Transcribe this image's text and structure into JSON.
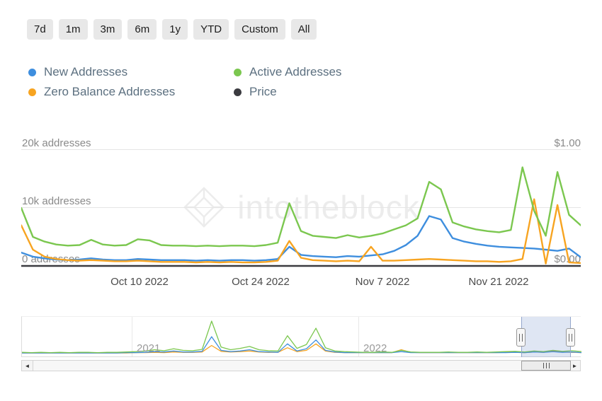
{
  "toolbar": {
    "ranges": [
      "7d",
      "1m",
      "3m",
      "6m",
      "1y",
      "YTD",
      "Custom",
      "All"
    ]
  },
  "legend": {
    "items": [
      {
        "label": "New Addresses",
        "color": "#3e8ede"
      },
      {
        "label": "Active Addresses",
        "color": "#7bc74f"
      },
      {
        "label": "Zero Balance Addresses",
        "color": "#f7a421"
      },
      {
        "label": "Price",
        "color": "#3b3b40"
      }
    ]
  },
  "watermark": {
    "text": "intotheblock"
  },
  "chart_data": {
    "type": "line",
    "title": "",
    "ylabel_left": "addresses",
    "ylabel_right": "price",
    "ylim": [
      0,
      20000
    ],
    "ylim_right": [
      0,
      1
    ],
    "grid": true,
    "y_left_labels": [
      "20k addresses",
      "10k addresses",
      "0 addresses"
    ],
    "y_right_labels": [
      "$1.00",
      "$0.00"
    ],
    "x_labels": [
      "Oct 10 2022",
      "Oct 24 2022",
      "Nov 7 2022",
      "Nov 21 2022"
    ],
    "series": [
      {
        "name": "New Addresses",
        "color": "#3e8ede",
        "axis": "left",
        "values": [
          2300,
          1600,
          1300,
          1100,
          1000,
          1100,
          1300,
          1100,
          1000,
          1000,
          1200,
          1100,
          1000,
          1000,
          1000,
          900,
          1000,
          900,
          1000,
          1000,
          900,
          1000,
          1200,
          3300,
          1900,
          1700,
          1600,
          1500,
          1700,
          1600,
          1800,
          2000,
          2600,
          3600,
          5200,
          8600,
          8000,
          4800,
          4200,
          3800,
          3500,
          3300,
          3200,
          3100,
          3000,
          2800,
          2600,
          3000,
          1500
        ]
      },
      {
        "name": "Zero Balance Addresses",
        "color": "#f7a421",
        "axis": "left",
        "values": [
          7000,
          2800,
          1600,
          1200,
          1000,
          900,
          1000,
          900,
          800,
          800,
          900,
          800,
          700,
          700,
          700,
          600,
          700,
          600,
          700,
          600,
          600,
          700,
          900,
          4300,
          1400,
          1000,
          900,
          800,
          900,
          800,
          3300,
          900,
          900,
          1000,
          1100,
          1200,
          1100,
          1000,
          900,
          800,
          800,
          700,
          800,
          1200,
          11500,
          400,
          10500,
          600,
          500
        ]
      },
      {
        "name": "Active Addresses",
        "color": "#7bc74f",
        "axis": "left",
        "values": [
          10000,
          5000,
          4200,
          3700,
          3500,
          3600,
          4500,
          3700,
          3500,
          3600,
          4600,
          4400,
          3600,
          3500,
          3500,
          3400,
          3500,
          3400,
          3500,
          3500,
          3400,
          3600,
          4000,
          10800,
          6000,
          5200,
          5000,
          4800,
          5300,
          4900,
          5200,
          5600,
          6300,
          7000,
          8200,
          14500,
          13200,
          7500,
          6800,
          6300,
          6000,
          5800,
          6200,
          17000,
          9500,
          5200,
          16200,
          8800,
          7000
        ]
      },
      {
        "name": "Price",
        "color": "#3b3b40",
        "axis": "right",
        "values": [
          0,
          0
        ]
      }
    ]
  },
  "navigator": {
    "year_labels": [
      "2021",
      "2022"
    ],
    "series": [
      {
        "name": "Zero Balance Addresses",
        "color": "#f7a421",
        "values": [
          0.02,
          0.02,
          0.02,
          0.02,
          0.02,
          0.02,
          0.02,
          0.02,
          0.02,
          0.02,
          0.02,
          0.02,
          0.03,
          0.03,
          0.04,
          0.03,
          0.05,
          0.04,
          0.04,
          0.05,
          0.25,
          0.07,
          0.05,
          0.06,
          0.08,
          0.05,
          0.04,
          0.04,
          0.18,
          0.06,
          0.1,
          0.3,
          0.08,
          0.04,
          0.03,
          0.03,
          0.03,
          0.03,
          0.03,
          0.03,
          0.12,
          0.04,
          0.03,
          0.03,
          0.03,
          0.03,
          0.03,
          0.03,
          0.03,
          0.03,
          0.03,
          0.04,
          0.04,
          0.03,
          0.05,
          0.04,
          0.08,
          0.05,
          0.04,
          0.03
        ]
      },
      {
        "name": "New Addresses",
        "color": "#3e8ede",
        "values": [
          0.02,
          0.02,
          0.02,
          0.02,
          0.02,
          0.02,
          0.02,
          0.02,
          0.02,
          0.02,
          0.02,
          0.03,
          0.03,
          0.04,
          0.06,
          0.05,
          0.08,
          0.05,
          0.05,
          0.07,
          0.52,
          0.1,
          0.06,
          0.08,
          0.12,
          0.06,
          0.05,
          0.04,
          0.3,
          0.08,
          0.15,
          0.42,
          0.1,
          0.05,
          0.03,
          0.03,
          0.03,
          0.03,
          0.03,
          0.03,
          0.06,
          0.03,
          0.03,
          0.03,
          0.03,
          0.03,
          0.03,
          0.03,
          0.03,
          0.03,
          0.03,
          0.03,
          0.04,
          0.03,
          0.05,
          0.04,
          0.06,
          0.04,
          0.05,
          0.03
        ]
      },
      {
        "name": "Active Addresses",
        "color": "#7bc74f",
        "values": [
          0.04,
          0.03,
          0.04,
          0.03,
          0.04,
          0.03,
          0.04,
          0.04,
          0.03,
          0.04,
          0.04,
          0.05,
          0.06,
          0.08,
          0.12,
          0.09,
          0.15,
          0.1,
          0.09,
          0.13,
          1.0,
          0.2,
          0.12,
          0.16,
          0.22,
          0.12,
          0.09,
          0.08,
          0.55,
          0.16,
          0.28,
          0.78,
          0.18,
          0.08,
          0.06,
          0.05,
          0.04,
          0.04,
          0.05,
          0.04,
          0.1,
          0.05,
          0.04,
          0.04,
          0.04,
          0.05,
          0.04,
          0.04,
          0.05,
          0.04,
          0.05,
          0.06,
          0.07,
          0.05,
          0.08,
          0.06,
          0.1,
          0.07,
          0.09,
          0.06
        ]
      }
    ]
  },
  "scrollbar": {
    "left_arrow": "◄",
    "right_arrow": "►"
  }
}
